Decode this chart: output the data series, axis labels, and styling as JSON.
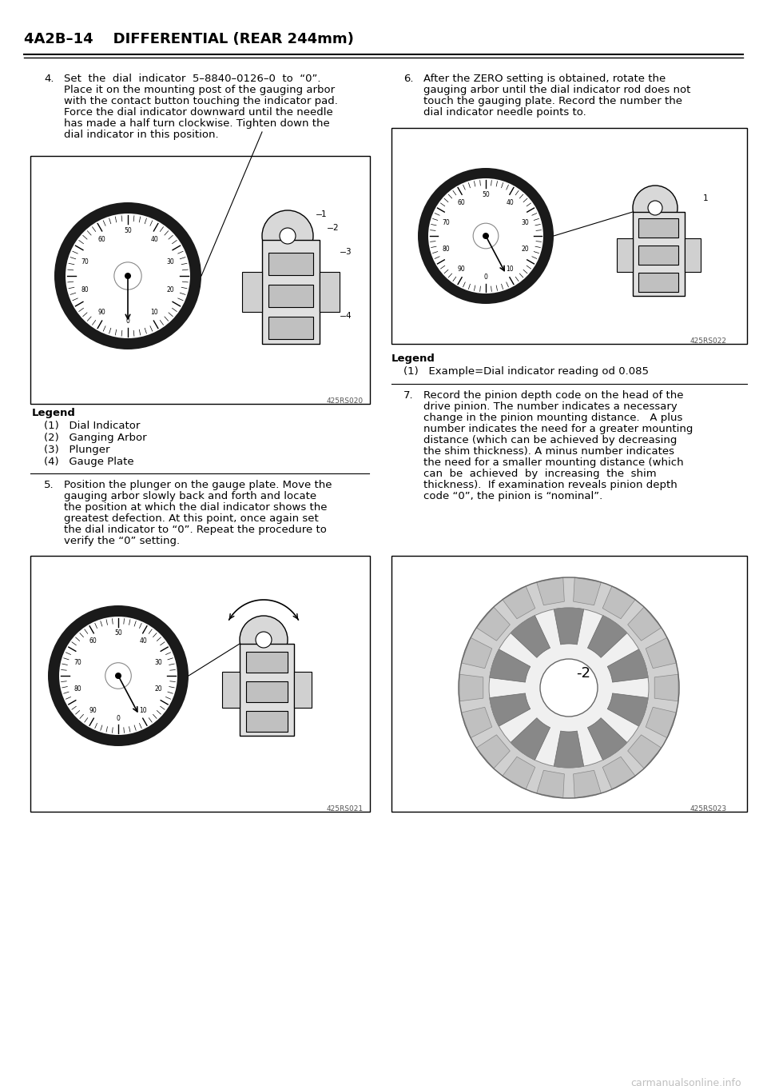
{
  "page_title": "4A2B–14    DIFFERENTIAL (REAR 244mm)",
  "bg_color": "#ffffff",
  "text_color": "#000000",
  "watermark": "carmanualsonline.info",
  "left_col": {
    "item4_header": "4.",
    "item4_text": "Set  the  dial  indicator  5–8840–0126–0  to  “0”.\nPlace it on the mounting post of the gauging arbor\nwith the contact button touching the indicator pad.\nForce the dial indicator downward until the needle\nhas made a half turn clockwise. Tighten down the\ndial indicator in this position.",
    "fig1_code": "425RS020",
    "legend_title": "Legend",
    "legend_items": [
      "(1)   Dial Indicator",
      "(2)   Ganging Arbor",
      "(3)   Plunger",
      "(4)   Gauge Plate"
    ],
    "item5_header": "5.",
    "item5_text": "Position the plunger on the gauge plate. Move the\ngauging arbor slowly back and forth and locate\nthe position at which the dial indicator shows the\ngreatest defection. At this point, once again set\nthe dial indicator to “0”. Repeat the procedure to\nverify the “0” setting.",
    "fig2_code": "425RS021"
  },
  "right_col": {
    "item6_header": "6.",
    "item6_text": "After the ZERO setting is obtained, rotate the\ngauging arbor until the dial indicator rod does not\ntouch the gauging plate. Record the number the\ndial indicator needle points to.",
    "fig3_code": "425RS022",
    "legend_title": "Legend",
    "legend_item": "(1)   Example=Dial indicator reading od 0.085",
    "item7_header": "7.",
    "item7_text": "Record the pinion depth code on the head of the\ndrive pinion. The number indicates a necessary\nchange in the pinion mounting distance.   A plus\nnumber indicates the need for a greater mounting\ndistance (which can be achieved by decreasing\nthe shim thickness). A minus number indicates\nthe need for a smaller mounting distance (which\ncan  be  achieved  by  increasing  the  shim\nthickness).  If examination reveals pinion depth\ncode “0”, the pinion is “nominal”.",
    "fig4_code": "425RS023"
  }
}
